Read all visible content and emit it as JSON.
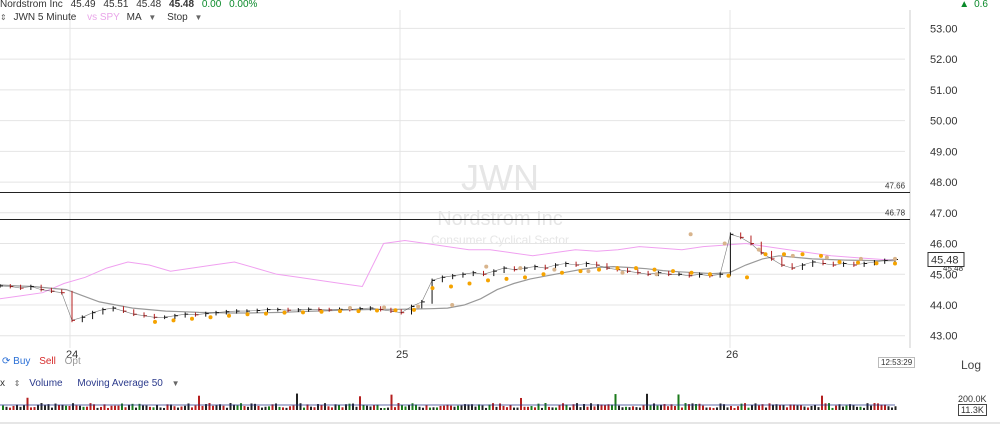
{
  "header": {
    "name": "Nordstrom Inc",
    "open": "45.49",
    "high": "45.51",
    "low": "45.48",
    "last": "45.48",
    "change": "0.00",
    "change_pct": "0.00%",
    "right_fragment": "0.6"
  },
  "toolbar": {
    "symbol_interval": "JWN 5 Minute",
    "compare": "vs SPY",
    "ma_label": "MA",
    "stop_label": "Stop"
  },
  "watermark": {
    "symbol": "JWN",
    "name": "Nordstrom Inc",
    "sector": "Consumer Cyclical Sector"
  },
  "chart_data": {
    "type": "line",
    "y_ticks": [
      "53.00",
      "52.00",
      "51.00",
      "50.00",
      "49.00",
      "48.00",
      "47.00",
      "46.00",
      "45.00",
      "44.00",
      "43.00"
    ],
    "ylim": [
      42.6,
      53.6
    ],
    "x_ticks": [
      "24",
      "25",
      "26"
    ],
    "x_tick_positions": [
      0.07,
      0.4,
      0.73
    ],
    "horizontal_lines": [
      {
        "label": "47.66",
        "value": 47.66
      },
      {
        "label": "46.78",
        "value": 46.78
      }
    ],
    "price_label": "45.48",
    "price_value": 45.48,
    "price_series": [
      44.62,
      44.6,
      44.55,
      44.6,
      44.5,
      44.45,
      44.4,
      43.5,
      43.6,
      43.75,
      43.85,
      43.9,
      43.8,
      43.7,
      43.65,
      43.6,
      43.6,
      43.65,
      43.7,
      43.68,
      43.72,
      43.75,
      43.78,
      43.8,
      43.8,
      43.82,
      43.85,
      43.85,
      43.83,
      43.84,
      43.86,
      43.85,
      43.84,
      43.86,
      43.85,
      43.88,
      43.9,
      43.85,
      43.8,
      43.75,
      43.95,
      44.1,
      44.8,
      44.9,
      44.95,
      45.0,
      45.05,
      45.0,
      45.1,
      45.2,
      45.15,
      45.2,
      45.25,
      45.2,
      45.3,
      45.35,
      45.3,
      45.35,
      45.3,
      45.2,
      45.15,
      45.1,
      45.05,
      45.0,
      45.05,
      45.0,
      45.0,
      44.95,
      45.0,
      44.95,
      45.0,
      46.3,
      46.2,
      46.0,
      45.7,
      45.5,
      45.3,
      45.2,
      45.3,
      45.4,
      45.35,
      45.3,
      45.35,
      45.3,
      45.35,
      45.4,
      45.45,
      45.48
    ],
    "ma_gray_series": [
      44.65,
      44.62,
      44.6,
      44.55,
      44.5,
      44.3,
      44.1,
      44.0,
      43.9,
      43.85,
      43.8,
      43.78,
      43.76,
      43.75,
      43.74,
      43.74,
      43.75,
      43.76,
      43.78,
      43.8,
      43.82,
      43.84,
      43.85,
      43.86,
      43.86,
      43.87,
      43.88,
      43.9,
      44.0,
      44.2,
      44.5,
      44.7,
      44.85,
      44.95,
      45.05,
      45.15,
      45.22,
      45.25,
      45.22,
      45.18,
      45.12,
      45.08,
      45.05,
      45.02,
      45.05,
      45.3,
      45.5,
      45.6,
      45.55,
      45.5,
      45.48,
      45.46,
      45.45,
      45.44,
      45.44
    ],
    "stop_orange_series": [
      43.45,
      43.5,
      43.55,
      43.6,
      43.65,
      43.7,
      43.72,
      43.75,
      43.76,
      43.78,
      43.8,
      43.8,
      43.82,
      43.83,
      43.84,
      44.55,
      44.6,
      44.7,
      44.8,
      44.85,
      44.9,
      45.0,
      45.05,
      45.1,
      45.15,
      45.2,
      45.2,
      45.15,
      45.1,
      45.05,
      45.0,
      44.95,
      44.9,
      45.65,
      45.65,
      45.65,
      45.6,
      45.4,
      45.38,
      45.36,
      45.35
    ],
    "stop_tan_series": [
      43.9,
      43.92,
      43.95,
      44.0,
      45.25,
      45.2,
      45.15,
      45.1,
      45.05,
      45.0,
      46.3,
      46.0,
      45.8,
      45.6,
      45.55,
      45.5,
      45.5
    ],
    "compare_series": [
      44.2,
      44.3,
      44.4,
      44.7,
      44.9,
      45.2,
      45.4,
      45.3,
      45.1,
      45.2,
      45.3,
      45.4,
      45.2,
      45.0,
      44.9,
      44.8,
      44.7,
      44.6,
      46.0,
      46.1,
      46.0,
      45.9,
      45.8,
      45.8,
      45.7,
      45.6,
      45.7,
      45.8,
      45.75,
      45.8,
      45.9,
      45.85,
      45.8,
      45.9,
      45.95,
      46.0,
      45.9,
      45.8,
      45.7,
      45.6,
      45.55,
      45.5,
      45.45
    ]
  },
  "alert_labels": [
    {
      "label": "45.48",
      "value": 45.48
    },
    {
      "label": "45.48",
      "value": 45.2
    }
  ],
  "trade": {
    "buy": "Buy",
    "sell": "Sell",
    "opt": "Opt"
  },
  "log_label": "Log",
  "timestamp": "12:53:29",
  "volume": {
    "close_x": "x",
    "label": "Volume",
    "ma_label": "Moving Average 50",
    "label_200k": "200.0K",
    "label_current": "11.3K"
  },
  "colors": {
    "up": "#1a7a1a",
    "down": "#b41e1e",
    "orange": "#f5a300",
    "tan": "#d8b48c",
    "compare": "#f0a0f0",
    "gray_ma": "#999999",
    "grid": "#e4e4e4"
  }
}
